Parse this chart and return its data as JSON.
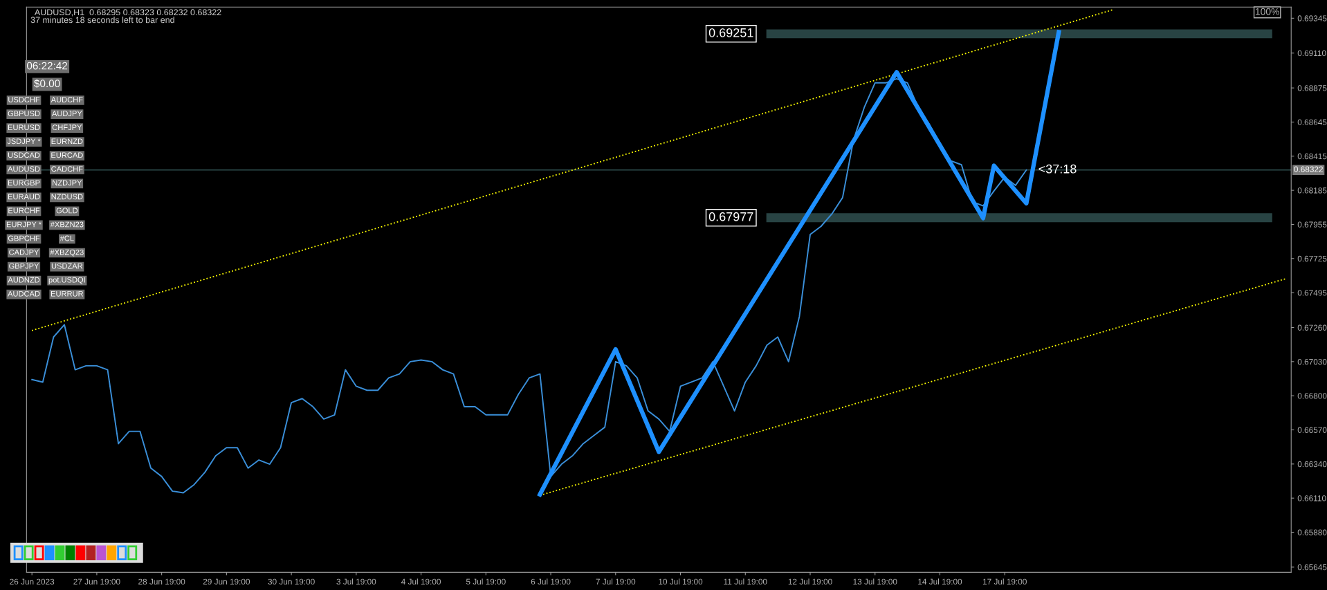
{
  "chart_data": {
    "type": "line",
    "ylim": [
      0.6561,
      0.6942
    ],
    "categories": [
      "26 Jun 2023",
      null,
      null,
      null,
      null,
      null,
      "27 Jun 19:00",
      null,
      null,
      null,
      null,
      null,
      "28 Jun 19:00",
      null,
      null,
      null,
      null,
      null,
      "29 Jun 19:00",
      null,
      null,
      null,
      null,
      null,
      "30 Jun 19:00",
      null,
      null,
      null,
      null,
      null,
      "3 Jul 19:00",
      null,
      null,
      null,
      null,
      null,
      "4 Jul 19:00",
      null,
      null,
      null,
      null,
      null,
      "5 Jul 19:00",
      null,
      null,
      null,
      null,
      null,
      "6 Jul 19:00",
      null,
      null,
      null,
      null,
      null,
      "7 Jul 19:00",
      null,
      null,
      null,
      null,
      null,
      "10 Jul 19:00",
      null,
      null,
      null,
      null,
      null,
      "11 Jul 19:00",
      null,
      null,
      null,
      null,
      null,
      "12 Jul 19:00",
      null,
      null,
      null,
      null,
      null,
      "13 Jul 19:00",
      null,
      null,
      null,
      null,
      null,
      "14 Jul 19:00",
      null,
      null,
      null,
      null,
      null,
      "17 Jul 19:00",
      null,
      null,
      null,
      null,
      null,
      null,
      null,
      null,
      null,
      null,
      null,
      null,
      null,
      null,
      null,
      null,
      null,
      null,
      null,
      null,
      null,
      null,
      null,
      null,
      null,
      null
    ],
    "yticks": [
      {
        "value": 0.65645,
        "label": "0.65645"
      },
      {
        "value": 0.6588,
        "label": "0.65880"
      },
      {
        "value": 0.6611,
        "label": "0.66110"
      },
      {
        "value": 0.6634,
        "label": "0.66340"
      },
      {
        "value": 0.6657,
        "label": "0.66570"
      },
      {
        "value": 0.668,
        "label": "0.66800"
      },
      {
        "value": 0.6703,
        "label": "0.67030"
      },
      {
        "value": 0.6726,
        "label": "0.67260"
      },
      {
        "value": 0.67495,
        "label": "0.67495"
      },
      {
        "value": 0.67725,
        "label": "0.67725"
      },
      {
        "value": 0.67955,
        "label": "0.67955"
      },
      {
        "value": 0.68185,
        "label": "0.68185"
      },
      {
        "value": 0.68415,
        "label": "0.68415"
      },
      {
        "value": 0.68645,
        "label": "0.68645"
      },
      {
        "value": 0.68875,
        "label": "0.68875"
      },
      {
        "value": 0.6911,
        "label": "0.69110"
      },
      {
        "value": 0.69345,
        "label": "0.69345"
      }
    ],
    "grid": false,
    "series": [
      {
        "color": "#3a8fd9",
        "line_style": "solid",
        "values": [
          0.66909,
          0.66892,
          0.67196,
          0.67279,
          0.66975,
          0.67002,
          0.67002,
          0.66975,
          0.66477,
          0.6656,
          0.6656,
          0.66312,
          0.66256,
          0.66157,
          0.66146,
          0.66201,
          0.66284,
          0.66395,
          0.6645,
          0.6645,
          0.66312,
          0.66367,
          0.66339,
          0.6645,
          0.66754,
          0.66781,
          0.66726,
          0.66643,
          0.66671,
          0.66975,
          0.66864,
          0.66837,
          0.66837,
          0.6692,
          0.66947,
          0.6703,
          0.67041,
          0.6703,
          0.66975,
          0.66947,
          0.66726,
          0.66726,
          0.66671,
          0.66671,
          0.66671,
          0.66809,
          0.6692,
          0.66947,
          0.66256,
          0.66339,
          0.66395,
          0.66477,
          0.66533,
          0.66588,
          0.6703,
          0.67002,
          0.6692,
          0.66698,
          0.66643,
          0.6656,
          0.66864,
          0.66892,
          0.6692,
          0.6703,
          0.66864,
          0.66698,
          0.66892,
          0.67002,
          0.67141,
          0.67196,
          0.6703,
          0.67334,
          0.67887,
          0.67942,
          0.68025,
          0.68136,
          0.68522,
          0.68743,
          0.68909,
          0.68909,
          0.68937,
          0.68909,
          0.68743,
          0.68633,
          0.68495,
          0.68384,
          0.68357,
          0.68108,
          0.6808,
          0.6818,
          0.68274,
          0.68218,
          0.68322,
          null,
          null,
          null,
          null,
          null,
          null,
          null,
          null,
          null,
          null,
          null,
          null,
          null,
          null,
          null,
          null,
          null,
          null,
          null,
          null,
          null,
          null,
          null,
          null
        ]
      },
      {
        "color": "#1e90ff",
        "line_style": "solid",
        "values": [
          null,
          null,
          null,
          null,
          null,
          null,
          null,
          null,
          null,
          null,
          null,
          null,
          null,
          null,
          null,
          null,
          null,
          null,
          null,
          null,
          null,
          null,
          null,
          null,
          null,
          null,
          null,
          null,
          null,
          null,
          null,
          null,
          null,
          null,
          null,
          null,
          null,
          null,
          null,
          null,
          null,
          null,
          null,
          null,
          null,
          null,
          null,
          0.66135,
          null,
          null,
          null,
          null,
          null,
          null,
          0.67113,
          null,
          null,
          null,
          0.66422,
          null,
          null,
          null,
          null,
          null,
          null,
          null,
          null,
          null,
          null,
          null,
          null,
          null,
          null,
          null,
          null,
          null,
          null,
          null,
          null,
          null,
          0.68981,
          null,
          null,
          null,
          null,
          null,
          null,
          null,
          0.67997,
          0.68351,
          null,
          null,
          0.68097,
          null,
          null,
          0.69251,
          null,
          null,
          null,
          null,
          null,
          null,
          null,
          null,
          null,
          null,
          null,
          null,
          null,
          null,
          null,
          null,
          null,
          null,
          null,
          null,
          null
        ]
      },
      {
        "color": "#ffff00",
        "line_style": "dotted",
        "values": [
          0.6724,
          null,
          null,
          null,
          null,
          null,
          null,
          null,
          null,
          null,
          null,
          null,
          null,
          null,
          null,
          null,
          null,
          null,
          null,
          null,
          null,
          null,
          null,
          null,
          null,
          null,
          null,
          null,
          null,
          null,
          null,
          null,
          null,
          null,
          null,
          null,
          null,
          null,
          null,
          null,
          null,
          null,
          null,
          null,
          null,
          null,
          null,
          null,
          null,
          null,
          null,
          null,
          null,
          null,
          null,
          null,
          null,
          null,
          null,
          null,
          null,
          null,
          null,
          null,
          null,
          null,
          null,
          null,
          null,
          null,
          null,
          null,
          null,
          null,
          null,
          null,
          null,
          null,
          null,
          null,
          null,
          null,
          null,
          null,
          null,
          null,
          null,
          null,
          null,
          null,
          null,
          null,
          null,
          null,
          null,
          null,
          null,
          null,
          null,
          null,
          0.69402,
          null,
          null,
          null,
          null,
          null,
          null,
          null,
          null,
          null,
          null,
          null,
          null,
          null,
          null,
          null,
          null
        ]
      },
      {
        "color": "#ffff00",
        "line_style": "dotted",
        "values": [
          null,
          null,
          null,
          null,
          null,
          null,
          null,
          null,
          null,
          null,
          null,
          null,
          null,
          null,
          null,
          null,
          null,
          null,
          null,
          null,
          null,
          null,
          null,
          null,
          null,
          null,
          null,
          null,
          null,
          null,
          null,
          null,
          null,
          null,
          null,
          null,
          null,
          null,
          null,
          null,
          null,
          null,
          null,
          null,
          null,
          null,
          null,
          0.66129,
          null,
          null,
          null,
          null,
          null,
          null,
          null,
          null,
          null,
          null,
          null,
          null,
          null,
          null,
          null,
          null,
          null,
          null,
          null,
          null,
          null,
          null,
          null,
          null,
          null,
          null,
          null,
          null,
          null,
          null,
          null,
          null,
          null,
          null,
          null,
          null,
          null,
          null,
          null,
          null,
          null,
          null,
          null,
          null,
          null,
          null,
          null,
          null,
          null,
          null,
          null,
          null,
          null,
          null,
          null,
          null,
          null,
          null,
          null,
          null,
          null,
          null,
          null,
          null,
          null,
          null,
          null,
          null,
          0.67589
        ]
      }
    ],
    "ref_lines": [
      {
        "axis": "y",
        "value": 0.68322,
        "label": "0.68322",
        "color": "#2f4f4f"
      }
    ],
    "bands": [
      {
        "axis": "y",
        "from": 0.6797,
        "to": 0.6803,
        "label": "0.67977",
        "color": "#2f4f4f"
      },
      {
        "axis": "y",
        "from": 0.6921,
        "to": 0.6927,
        "label": "0.69251",
        "color": "#2f4f4f"
      }
    ],
    "annotations": [
      "AUDUSD,H1  0.68295 0.68323 0.68232 0.68322",
      "37 minutes 18 seconds left to bar end",
      "06:22:42",
      "$0.00",
      "100%",
      "<37:18",
      "USDCHF",
      "GBPUSD",
      "EURUSD",
      "JSDJPY *",
      "USDCAD",
      "AUDUSD",
      "EURGBP",
      "EURAUD",
      "EURCHF",
      "EURJPY *",
      "GBPCHF",
      "CADJPY",
      "GBPJPY",
      "AUDNZD",
      "AUDCAD",
      "AUDCHF",
      "AUDJPY",
      "CHFJPY",
      "EURNZD",
      "EURCAD",
      "CADCHF",
      "NZDJPY",
      "NZDUSD",
      "GOLD",
      "#XBZN23",
      "#CL",
      "#XBZQ23",
      "USDZAR",
      "pot.USDQI",
      "EURRUR"
    ]
  }
}
